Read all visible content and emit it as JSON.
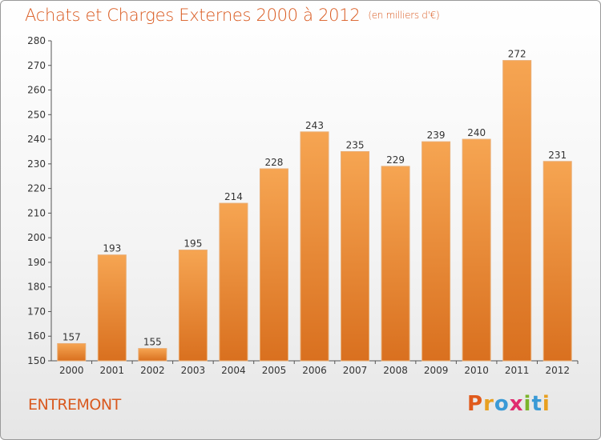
{
  "title": "Achats et Charges Externes 2000 à 2012",
  "unit_note": "(en milliers d'€)",
  "commune": "ENTREMONT",
  "logo": {
    "text": "Proxiti",
    "letter_colors": [
      "#e05a1c",
      "#e8a020",
      "#3a9ad6",
      "#e02b6f",
      "#7bb42b",
      "#3a9ad6",
      "#e8a020"
    ]
  },
  "colors": {
    "accent": "#d9591f",
    "bar_top": "#f6a552",
    "bar_bottom": "#d9701f",
    "axis": "#555555"
  },
  "chart_data": {
    "type": "bar",
    "title": "Achats et Charges Externes 2000 à 2012",
    "categories": [
      "2000",
      "2001",
      "2002",
      "2003",
      "2004",
      "2005",
      "2006",
      "2007",
      "2008",
      "2009",
      "2010",
      "2011",
      "2012"
    ],
    "values": [
      157,
      193,
      155,
      195,
      214,
      228,
      243,
      235,
      229,
      239,
      240,
      272,
      231
    ],
    "ylim": [
      150,
      280
    ],
    "yticks": [
      150,
      160,
      170,
      180,
      190,
      200,
      210,
      220,
      230,
      240,
      250,
      260,
      270,
      280
    ],
    "grid": false,
    "data_labels": true
  }
}
